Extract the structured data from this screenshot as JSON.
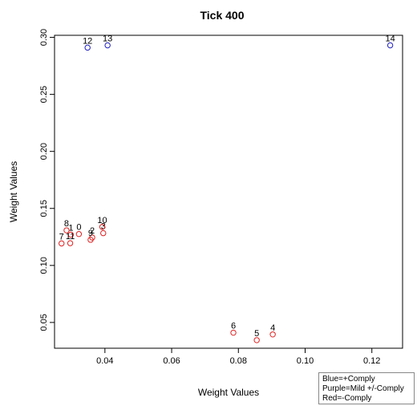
{
  "chart_data": {
    "type": "scatter",
    "title": "Tick 400",
    "xlabel": "Weight Values",
    "ylabel": "Weight Values",
    "xlim": [
      0.0249,
      0.1292
    ],
    "ylim": [
      0.0274,
      0.3018
    ],
    "xticks": [
      0.04,
      0.06,
      0.08,
      0.1,
      0.12
    ],
    "xtick_labels": [
      "0.04",
      "0.06",
      "0.08",
      "0.10",
      "0.12"
    ],
    "yticks": [
      0.05,
      0.1,
      0.15,
      0.2,
      0.25,
      0.3
    ],
    "ytick_labels": [
      "0.05",
      "0.10",
      "0.15",
      "0.20",
      "0.25",
      "0.30"
    ],
    "grid": false,
    "colors": {
      "blue": "#2020c0",
      "red": "#e02020"
    },
    "points": [
      {
        "label": "0",
        "x": 0.0322,
        "y": 0.1275,
        "color": "red"
      },
      {
        "label": "1",
        "x": 0.0298,
        "y": 0.127,
        "color": "red"
      },
      {
        "label": "2",
        "x": 0.0362,
        "y": 0.1245,
        "color": "red"
      },
      {
        "label": "3",
        "x": 0.0395,
        "y": 0.1283,
        "color": "red"
      },
      {
        "label": "4",
        "x": 0.0903,
        "y": 0.0395,
        "color": "red"
      },
      {
        "label": "5",
        "x": 0.0855,
        "y": 0.0345,
        "color": "red"
      },
      {
        "label": "6",
        "x": 0.0785,
        "y": 0.041,
        "color": "red"
      },
      {
        "label": "7",
        "x": 0.027,
        "y": 0.1193,
        "color": "red"
      },
      {
        "label": "8",
        "x": 0.0285,
        "y": 0.1308,
        "color": "red"
      },
      {
        "label": "9",
        "x": 0.0357,
        "y": 0.1225,
        "color": "red"
      },
      {
        "label": "10",
        "x": 0.0392,
        "y": 0.1338,
        "color": "red"
      },
      {
        "label": "11",
        "x": 0.0296,
        "y": 0.1195,
        "color": "red"
      },
      {
        "label": "12",
        "x": 0.0348,
        "y": 0.291,
        "color": "blue"
      },
      {
        "label": "13",
        "x": 0.0408,
        "y": 0.293,
        "color": "blue"
      },
      {
        "label": "14",
        "x": 0.1255,
        "y": 0.293,
        "color": "blue"
      }
    ],
    "legend": {
      "placement": "bottom-right, below plot",
      "entries": [
        "Blue=+Comply",
        "Purple=Mild +/-Comply",
        "Red=-Comply"
      ]
    }
  }
}
